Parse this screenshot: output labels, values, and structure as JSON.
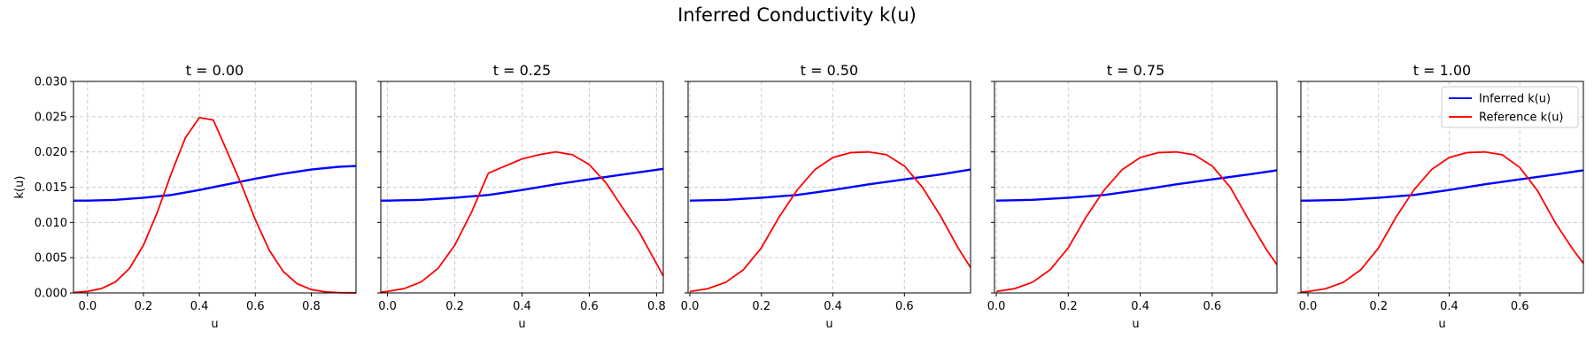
{
  "figure": {
    "title": "Inferred Conductivity k(u)"
  },
  "legend": {
    "placement": "top-right",
    "entries": [
      {
        "label": "Inferred k(u)",
        "color": "#0000ff"
      },
      {
        "label": "Reference k(u)",
        "color": "#ff0000"
      }
    ]
  },
  "chart_data": [
    {
      "type": "line",
      "title": "t = 0.00",
      "xlabel": "u",
      "ylabel": "k(u)",
      "xlim": [
        -0.05,
        0.96
      ],
      "ylim": [
        0.0,
        0.03
      ],
      "xticks": [
        "0.0",
        "0.2",
        "0.4",
        "0.6",
        "0.8"
      ],
      "yticks": [
        "0.000",
        "0.005",
        "0.010",
        "0.015",
        "0.020",
        "0.025",
        "0.030"
      ],
      "grid": true,
      "series": [
        {
          "name": "Inferred k(u)",
          "color": "#0000ff",
          "x": [
            -0.05,
            0.0,
            0.1,
            0.2,
            0.3,
            0.4,
            0.5,
            0.6,
            0.7,
            0.8,
            0.9,
            0.96
          ],
          "y": [
            0.0131,
            0.0131,
            0.0132,
            0.0135,
            0.0139,
            0.0146,
            0.0154,
            0.0162,
            0.0169,
            0.0175,
            0.0179,
            0.018
          ]
        },
        {
          "name": "Reference k(u)",
          "color": "#ff0000",
          "x": [
            -0.05,
            0.0,
            0.05,
            0.1,
            0.15,
            0.2,
            0.25,
            0.3,
            0.35,
            0.4,
            0.45,
            0.5,
            0.55,
            0.6,
            0.65,
            0.7,
            0.75,
            0.8,
            0.85,
            0.9,
            0.96
          ],
          "y": [
            6e-05,
            0.00022,
            0.00062,
            0.00156,
            0.00347,
            0.00676,
            0.01147,
            0.01699,
            0.022,
            0.02487,
            0.02453,
            0.02,
            0.01542,
            0.0104,
            0.00605,
            0.00303,
            0.0013,
            0.00048,
            0.00015,
            4e-05,
            1e-05
          ]
        }
      ]
    },
    {
      "type": "line",
      "title": "t = 0.25",
      "xlabel": "u",
      "ylabel": "",
      "xlim": [
        -0.02,
        0.82
      ],
      "ylim": [
        0.0,
        0.03
      ],
      "xticks": [
        "0.0",
        "0.2",
        "0.4",
        "0.6",
        "0.8"
      ],
      "yticks": [],
      "grid": true,
      "series": [
        {
          "name": "Inferred k(u)",
          "color": "#0000ff",
          "x": [
            -0.02,
            0.0,
            0.1,
            0.2,
            0.3,
            0.4,
            0.5,
            0.6,
            0.7,
            0.82
          ],
          "y": [
            0.0131,
            0.0131,
            0.0132,
            0.0135,
            0.0139,
            0.0146,
            0.0154,
            0.0161,
            0.0168,
            0.0176
          ]
        },
        {
          "name": "Reference k(u)",
          "color": "#ff0000",
          "x": [
            -0.02,
            0.0,
            0.05,
            0.1,
            0.15,
            0.2,
            0.25,
            0.3,
            0.35,
            0.4,
            0.45,
            0.5,
            0.55,
            0.6,
            0.65,
            0.7,
            0.75,
            0.82
          ],
          "y": [
            0.0001,
            0.00022,
            0.00062,
            0.00156,
            0.00347,
            0.00676,
            0.01147,
            0.01699,
            0.018,
            0.019,
            0.0196,
            0.02,
            0.0196,
            0.0182,
            0.0156,
            0.012,
            0.0085,
            0.0024
          ]
        }
      ]
    },
    {
      "type": "line",
      "title": "t = 0.50",
      "xlabel": "u",
      "ylabel": "",
      "xlim": [
        -0.005,
        0.785
      ],
      "ylim": [
        0.0,
        0.03
      ],
      "xticks": [
        "0.0",
        "0.2",
        "0.4",
        "0.6"
      ],
      "yticks": [],
      "grid": true,
      "series": [
        {
          "name": "Inferred k(u)",
          "color": "#0000ff",
          "x": [
            0.0,
            0.1,
            0.2,
            0.3,
            0.4,
            0.5,
            0.6,
            0.7,
            0.785
          ],
          "y": [
            0.0131,
            0.0132,
            0.0135,
            0.0139,
            0.0146,
            0.0154,
            0.0161,
            0.0168,
            0.0175
          ]
        },
        {
          "name": "Reference k(u)",
          "color": "#ff0000",
          "x": [
            0.0,
            0.05,
            0.1,
            0.15,
            0.2,
            0.25,
            0.3,
            0.35,
            0.4,
            0.45,
            0.5,
            0.55,
            0.6,
            0.65,
            0.7,
            0.75,
            0.785
          ],
          "y": [
            0.0002,
            0.0006,
            0.0015,
            0.0033,
            0.0064,
            0.0108,
            0.0146,
            0.0175,
            0.0192,
            0.0199,
            0.02,
            0.0196,
            0.018,
            0.015,
            0.011,
            0.0064,
            0.0036
          ]
        }
      ]
    },
    {
      "type": "line",
      "title": "t = 0.75",
      "xlabel": "u",
      "ylabel": "",
      "xlim": [
        -0.005,
        0.78
      ],
      "ylim": [
        0.0,
        0.03
      ],
      "xticks": [
        "0.0",
        "0.2",
        "0.4",
        "0.6"
      ],
      "yticks": [],
      "grid": true,
      "series": [
        {
          "name": "Inferred k(u)",
          "color": "#0000ff",
          "x": [
            0.0,
            0.1,
            0.2,
            0.3,
            0.4,
            0.5,
            0.6,
            0.7,
            0.78
          ],
          "y": [
            0.0131,
            0.0132,
            0.0135,
            0.0139,
            0.0146,
            0.0154,
            0.0161,
            0.0168,
            0.0174
          ]
        },
        {
          "name": "Reference k(u)",
          "color": "#ff0000",
          "x": [
            0.0,
            0.05,
            0.1,
            0.15,
            0.2,
            0.25,
            0.3,
            0.35,
            0.4,
            0.45,
            0.5,
            0.55,
            0.6,
            0.65,
            0.7,
            0.75,
            0.78
          ],
          "y": [
            0.0002,
            0.0006,
            0.0015,
            0.0033,
            0.0064,
            0.0108,
            0.0146,
            0.0175,
            0.0192,
            0.0199,
            0.02,
            0.0196,
            0.018,
            0.015,
            0.0105,
            0.0062,
            0.004
          ]
        }
      ]
    },
    {
      "type": "line",
      "title": "t = 1.00",
      "xlabel": "u",
      "ylabel": "",
      "xlim": [
        -0.02,
        0.78
      ],
      "ylim": [
        0.0,
        0.03
      ],
      "xticks": [
        "0.0",
        "0.2",
        "0.4",
        "0.6"
      ],
      "yticks": [],
      "grid": true,
      "series": [
        {
          "name": "Inferred k(u)",
          "color": "#0000ff",
          "x": [
            -0.02,
            0.0,
            0.1,
            0.2,
            0.3,
            0.4,
            0.5,
            0.6,
            0.7,
            0.78
          ],
          "y": [
            0.0131,
            0.0131,
            0.0132,
            0.0135,
            0.0139,
            0.0146,
            0.0154,
            0.0161,
            0.0168,
            0.0174
          ]
        },
        {
          "name": "Reference k(u)",
          "color": "#ff0000",
          "x": [
            -0.02,
            0.0,
            0.05,
            0.1,
            0.15,
            0.2,
            0.25,
            0.3,
            0.35,
            0.4,
            0.45,
            0.5,
            0.55,
            0.6,
            0.65,
            0.7,
            0.75,
            0.78
          ],
          "y": [
            0.0001,
            0.0002,
            0.0006,
            0.0015,
            0.0033,
            0.0064,
            0.0108,
            0.0146,
            0.0175,
            0.0192,
            0.0199,
            0.02,
            0.0196,
            0.0178,
            0.0145,
            0.01,
            0.0062,
            0.0042
          ]
        }
      ]
    }
  ]
}
